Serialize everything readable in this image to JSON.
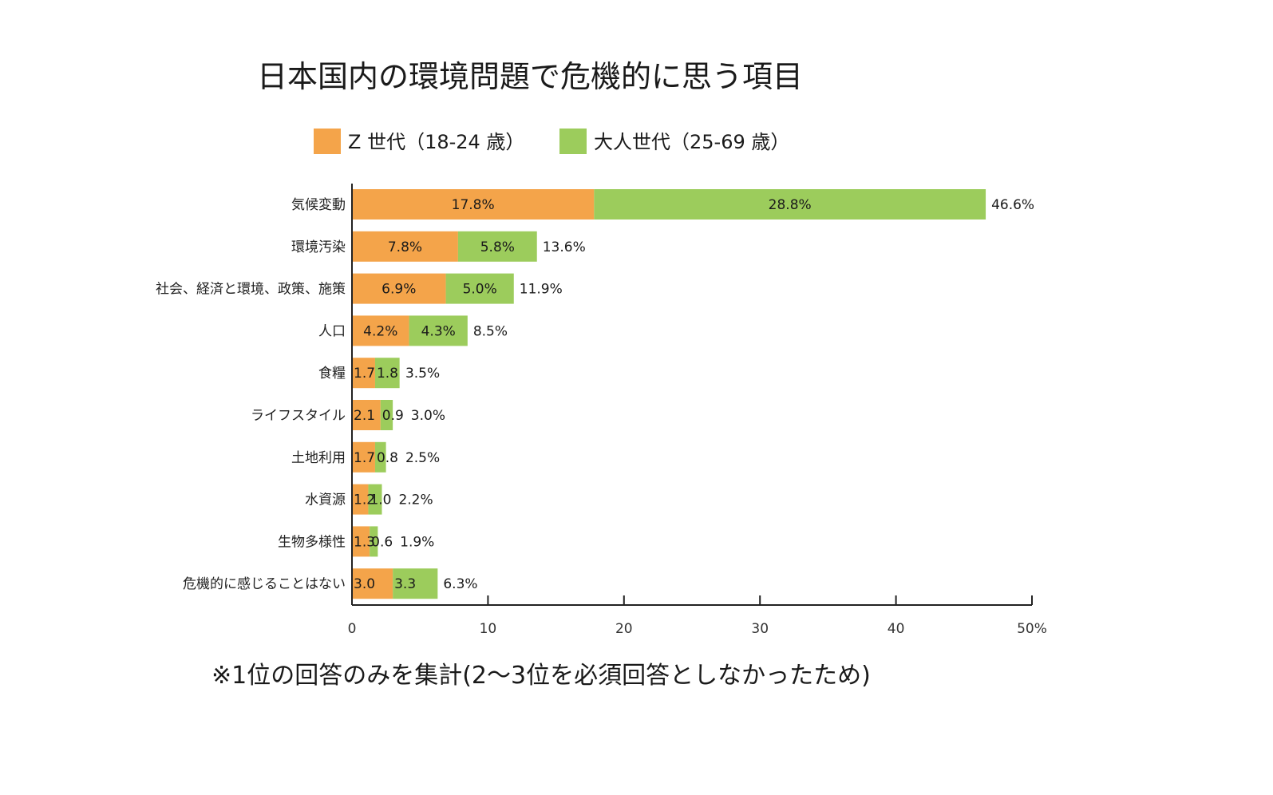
{
  "chart_data": {
    "type": "bar",
    "orientation": "horizontal",
    "stacked": true,
    "title": "日本国内の環境問題で危機的に思う項目",
    "note": "※1位の回答のみを集計(2〜3位を必須回答としなかったため)",
    "categories": [
      "気候変動",
      "環境汚染",
      "社会、経済と環境、政策、施策",
      "人口",
      "食糧",
      "ライフスタイル",
      "土地利用",
      "水資源",
      "生物多様性",
      "危機的に感じることはない"
    ],
    "series": [
      {
        "name": "Z 世代（18-24 歳）",
        "color": "#f4a44a",
        "values": [
          17.8,
          7.8,
          6.9,
          4.2,
          1.7,
          2.1,
          1.7,
          1.2,
          1.3,
          3.0
        ],
        "labels": [
          "17.8%",
          "7.8%",
          "6.9%",
          "4.2%",
          "1.7",
          "2.1",
          "1.7",
          "1.2",
          "1.3",
          "3.0"
        ]
      },
      {
        "name": "大人世代（25-69 歳）",
        "color": "#9ccc5c",
        "values": [
          28.8,
          5.8,
          5.0,
          4.3,
          1.8,
          0.9,
          0.8,
          1.0,
          0.6,
          3.3
        ],
        "labels": [
          "28.8%",
          "5.8%",
          "5.0%",
          "4.3%",
          "1.8",
          "0.9",
          "0.8",
          "1.0",
          "0.6",
          "3.3"
        ]
      }
    ],
    "totals": [
      46.6,
      13.6,
      11.9,
      8.5,
      3.5,
      3.0,
      2.5,
      2.2,
      1.9,
      6.3
    ],
    "total_labels": [
      "46.6%",
      "13.6%",
      "11.9%",
      "8.5%",
      "3.5%",
      "3.0%",
      "2.5%",
      "2.2%",
      "1.9%",
      "6.3%"
    ],
    "xlim": [
      0,
      50
    ],
    "xticks": [
      0,
      10,
      20,
      30,
      40,
      50
    ],
    "xtick_labels": [
      "0",
      "10",
      "20",
      "30",
      "40",
      "50%"
    ],
    "legend_position": "top",
    "grid": false
  }
}
